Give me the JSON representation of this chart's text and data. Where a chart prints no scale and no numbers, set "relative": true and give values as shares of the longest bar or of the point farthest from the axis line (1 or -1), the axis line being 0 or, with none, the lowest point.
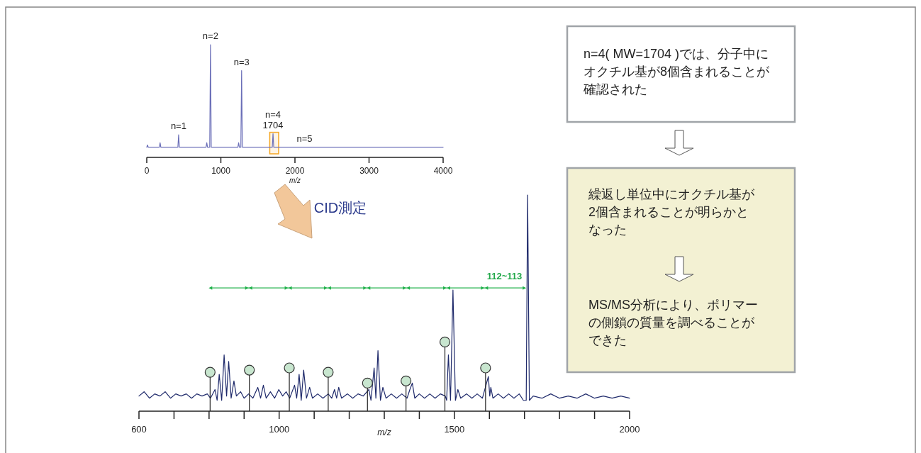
{
  "chart_data": [
    {
      "type": "line",
      "relative": true,
      "xlabel": "m/z",
      "xlim": [
        0,
        4000
      ],
      "xticks": [
        0,
        1000,
        2000,
        3000,
        4000
      ],
      "tick_labels": "x",
      "series": [
        {
          "color": "#6b6fb8",
          "x": [
            0,
            10,
            20,
            170,
            180,
            190,
            420,
            430,
            440,
            800,
            810,
            820,
            850,
            860,
            870,
            1230,
            1240,
            1250,
            1270,
            1280,
            1290,
            1694,
            1704,
            1714,
            4000
          ],
          "values": [
            0.09,
            0.11,
            0.09,
            0.09,
            0.13,
            0.09,
            0.09,
            0.2,
            0.09,
            0.09,
            0.13,
            0.09,
            0.09,
            1,
            0.09,
            0.09,
            0.13,
            0.09,
            0.09,
            0.77,
            0.09,
            0.09,
            0.21,
            0.09,
            0.09
          ]
        }
      ],
      "bands": [
        {
          "axis": "x",
          "from": 1660,
          "to": 1780,
          "color": "#f5a623"
        }
      ],
      "annotations": [
        {
          "text": "n=1",
          "x": 430,
          "y": 0.2
        },
        {
          "text": "n=2",
          "x": 860,
          "y": 1
        },
        {
          "text": "n=3",
          "x": 1280,
          "y": 0.77
        },
        {
          "text": "n=4",
          "x": 1704,
          "y": 0.21
        },
        {
          "text": "1704",
          "x": 1704,
          "y": 0.21
        },
        {
          "text": "n=5",
          "x": 2130,
          "y": 0.09
        }
      ]
    },
    {
      "type": "line",
      "relative": true,
      "xlabel": "m/z",
      "xlim": [
        600,
        2000
      ],
      "xticks": [
        600,
        {
          "value": 700,
          "label": null
        },
        {
          "value": 800,
          "label": null
        },
        {
          "value": 900,
          "label": null
        },
        1000,
        {
          "value": 1100,
          "label": null
        },
        {
          "value": 1200,
          "label": null
        },
        {
          "value": 1300,
          "label": null
        },
        {
          "value": 1400,
          "label": null
        },
        1500,
        {
          "value": 1600,
          "label": null
        },
        {
          "value": 1700,
          "label": null
        },
        {
          "value": 1800,
          "label": null
        },
        {
          "value": 1900,
          "label": null
        },
        2000
      ],
      "tick_labels": "x",
      "series": [
        {
          "color": "#1f2a6b",
          "x": [
            600,
            615,
            630,
            645,
            660,
            675,
            690,
            705,
            720,
            735,
            750,
            765,
            780,
            795,
            804,
            817,
            823,
            829,
            836,
            843,
            850,
            856,
            863,
            871,
            878,
            890,
            900,
            913,
            925,
            939,
            947,
            955,
            963,
            975,
            987,
            999,
            1010,
            1020,
            1030,
            1044,
            1050,
            1057,
            1063,
            1070,
            1078,
            1087,
            1095,
            1110,
            1125,
            1140,
            1150,
            1158,
            1164,
            1170,
            1178,
            1195,
            1210,
            1225,
            1240,
            1256,
            1262,
            1271,
            1276,
            1282,
            1289,
            1296,
            1305,
            1320,
            1335,
            1350,
            1365,
            1373,
            1380,
            1387,
            1400,
            1415,
            1430,
            1445,
            1460,
            1474,
            1478,
            1483,
            1489,
            1496,
            1503,
            1510,
            1518,
            1535,
            1550,
            1565,
            1580,
            1597,
            1601,
            1604,
            1610,
            1625,
            1640,
            1655,
            1670,
            1685,
            1697,
            1705,
            1709,
            1714,
            1725,
            1750,
            1775,
            1800,
            1825,
            1850,
            1875,
            1900,
            1925,
            1950,
            1975,
            2000
          ],
          "values": [
            0.07,
            0.09,
            0.06,
            0.08,
            0.07,
            0.09,
            0.06,
            0.08,
            0.07,
            0.08,
            0.06,
            0.08,
            0.07,
            0.08,
            0.06,
            0.1,
            0.05,
            0.17,
            0.05,
            0.26,
            0.07,
            0.23,
            0.06,
            0.14,
            0.07,
            0.09,
            0.06,
            0.08,
            0.06,
            0.11,
            0.06,
            0.12,
            0.06,
            0.09,
            0.06,
            0.1,
            0.07,
            0.09,
            0.06,
            0.12,
            0.06,
            0.17,
            0.05,
            0.19,
            0.06,
            0.11,
            0.06,
            0.08,
            0.06,
            0.08,
            0.06,
            0.1,
            0.06,
            0.11,
            0.06,
            0.08,
            0.06,
            0.08,
            0.07,
            0.1,
            0.05,
            0.2,
            0.06,
            0.28,
            0.05,
            0.11,
            0.06,
            0.08,
            0.06,
            0.08,
            0.06,
            0.1,
            0.13,
            0.06,
            0.08,
            0.06,
            0.08,
            0.06,
            0.08,
            0.07,
            0.05,
            0.26,
            0.05,
            0.56,
            0.05,
            0.1,
            0.06,
            0.08,
            0.06,
            0.08,
            0.06,
            0.16,
            0.07,
            0.11,
            0.06,
            0.08,
            0.06,
            0.08,
            0.06,
            0.08,
            0.05,
            0.05,
            1,
            0.05,
            0.07,
            0.06,
            0.08,
            0.06,
            0.07,
            0.06,
            0.08,
            0.06,
            0.07,
            0.06,
            0.07,
            0.06
          ]
        },
        {
          "type": "lollipop",
          "color": "#c8e6cf",
          "marker": "circle",
          "x": [
            803,
            915,
            1029,
            1140,
            1252,
            1362,
            1473,
            1589
          ],
          "values": [
            0.18,
            0.19,
            0.2,
            0.18,
            0.13,
            0.14,
            0.32,
            0.2
          ]
        },
        {
          "type": "line",
          "color": "#22b14c",
          "marker": "triangle",
          "x": [
            804,
            913,
            1026,
            1138,
            1250,
            1363,
            1478,
            1586,
            1700
          ],
          "values": [
            0.57,
            0.57,
            0.57,
            0.57,
            0.57,
            0.57,
            0.57,
            0.57,
            0.57
          ]
        }
      ],
      "annotations": [
        {
          "text": "112~113",
          "x": 1643,
          "y": 0.57
        },
        "CID測定"
      ]
    },
    {
      "type": "other",
      "annotations": [
        "n=4( MW=1704 )では、分子中にオクチル基が8個含まれることが確認された",
        "繰返し単位中にオクチル基が2個含まれることが明らかとなった",
        "MS/MS分析により、ポリマーの側鎖の質量を調べることができた"
      ]
    }
  ]
}
